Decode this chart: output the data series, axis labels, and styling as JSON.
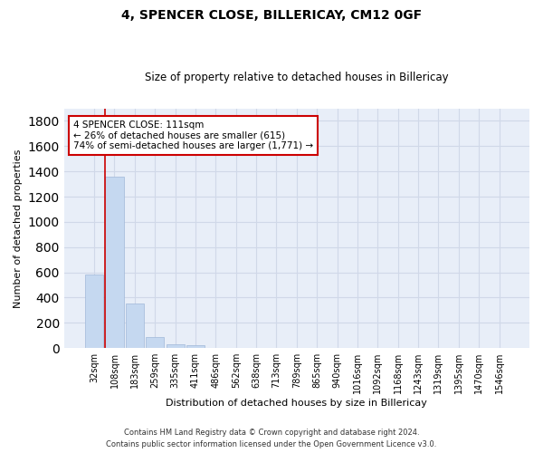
{
  "title": "4, SPENCER CLOSE, BILLERICAY, CM12 0GF",
  "subtitle": "Size of property relative to detached houses in Billericay",
  "xlabel": "Distribution of detached houses by size in Billericay",
  "ylabel": "Number of detached properties",
  "bin_labels": [
    "32sqm",
    "108sqm",
    "183sqm",
    "259sqm",
    "335sqm",
    "411sqm",
    "486sqm",
    "562sqm",
    "638sqm",
    "713sqm",
    "789sqm",
    "865sqm",
    "940sqm",
    "1016sqm",
    "1092sqm",
    "1168sqm",
    "1243sqm",
    "1319sqm",
    "1395sqm",
    "1470sqm",
    "1546sqm"
  ],
  "bar_values": [
    580,
    1355,
    355,
    90,
    30,
    20,
    0,
    0,
    0,
    0,
    0,
    0,
    0,
    0,
    0,
    0,
    0,
    0,
    0,
    0,
    0
  ],
  "bar_color": "#c5d8f0",
  "bar_edgecolor": "#a0b8d8",
  "property_line_x": 0.55,
  "annotation_text": "4 SPENCER CLOSE: 111sqm\n← 26% of detached houses are smaller (615)\n74% of semi-detached houses are larger (1,771) →",
  "annotation_box_edgecolor": "#cc0000",
  "annotation_box_facecolor": "#ffffff",
  "vline_color": "#cc0000",
  "ylim": [
    0,
    1900
  ],
  "yticks": [
    0,
    200,
    400,
    600,
    800,
    1000,
    1200,
    1400,
    1600,
    1800
  ],
  "grid_color": "#d0d8e8",
  "bg_color": "#e8eef8",
  "footer_line1": "Contains HM Land Registry data © Crown copyright and database right 2024.",
  "footer_line2": "Contains public sector information licensed under the Open Government Licence v3.0."
}
